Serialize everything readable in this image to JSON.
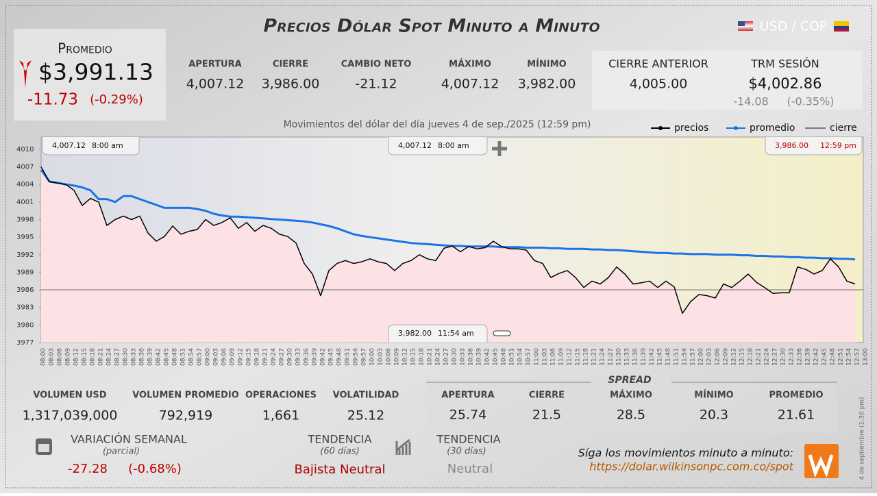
{
  "header": {
    "title": "Precios Dólar Spot Minuto a Minuto",
    "pair": "USD / COP"
  },
  "promedio": {
    "label": "Promedio",
    "value": "$3,991.13",
    "change": "-11.73",
    "pct": "(-0.29%)"
  },
  "stats": [
    {
      "label": "APERTURA",
      "value": "4,007.12"
    },
    {
      "label": "CIERRE",
      "value": "3,986.00"
    },
    {
      "label": "CAMBIO NETO",
      "value": "-21.12"
    },
    {
      "label": "MÁXIMO",
      "value": "4,007.12"
    },
    {
      "label": "MÍNIMO",
      "value": "3,982.00"
    }
  ],
  "cierre_anterior": {
    "label": "CIERRE ANTERIOR",
    "value": "4,005.00"
  },
  "trm": {
    "label": "TRM SESIÓN",
    "value": "$4,002.86",
    "change": "-14.08",
    "pct": "(-0.35%)"
  },
  "chart_data": {
    "type": "line",
    "title": "Movimientos del dólar del día jueves 4 de sep./2025 (12:59 pm)",
    "x": [
      "08:00",
      "08:03",
      "08:06",
      "08:09",
      "08:12",
      "08:15",
      "08:18",
      "08:21",
      "08:24",
      "08:27",
      "08:30",
      "08:33",
      "08:36",
      "08:39",
      "08:42",
      "08:45",
      "08:48",
      "08:51",
      "08:54",
      "08:57",
      "09:00",
      "09:03",
      "09:06",
      "09:09",
      "09:12",
      "09:15",
      "09:18",
      "09:21",
      "09:24",
      "09:27",
      "09:30",
      "09:33",
      "09:36",
      "09:39",
      "09:42",
      "09:45",
      "09:48",
      "09:51",
      "09:54",
      "09:57",
      "10:00",
      "10:03",
      "10:06",
      "10:09",
      "10:12",
      "10:15",
      "10:18",
      "10:21",
      "10:24",
      "10:27",
      "10:30",
      "10:33",
      "10:36",
      "10:39",
      "10:42",
      "10:45",
      "10:48",
      "10:51",
      "10:54",
      "10:57",
      "11:00",
      "11:03",
      "11:06",
      "11:09",
      "11:12",
      "11:15",
      "11:18",
      "11:21",
      "11:24",
      "11:27",
      "11:30",
      "11:33",
      "11:36",
      "11:39",
      "11:42",
      "11:45",
      "11:48",
      "11:51",
      "11:54",
      "11:57",
      "12:00",
      "12:03",
      "12:06",
      "12:09",
      "12:12",
      "12:15",
      "12:18",
      "12:21",
      "12:24",
      "12:27",
      "12:30",
      "12:33",
      "12:36",
      "12:39",
      "12:42",
      "12:45",
      "12:48",
      "12:51",
      "12:54",
      "12:57",
      "13:00"
    ],
    "series": [
      {
        "name": "precios",
        "color": "#000000",
        "values": [
          4007,
          4004.5,
          4004.2,
          4004,
          4003,
          4000.4,
          4001.6,
          4001,
          3997,
          3998,
          3998.6,
          3998,
          3998.6,
          3995.7,
          3994.3,
          3995.1,
          3996.9,
          3995.5,
          3996,
          3996.3,
          3998,
          3997,
          3997.5,
          3998.3,
          3996.5,
          3997.5,
          3996,
          3997,
          3996.5,
          3995.5,
          3995.1,
          3994,
          3990.5,
          3988.7,
          3985,
          3989.3,
          3990.5,
          3991,
          3990.5,
          3990.8,
          3991.3,
          3990.8,
          3990.5,
          3989.3,
          3990.5,
          3991,
          3992,
          3991.3,
          3991,
          3993.1,
          3993.5,
          3992.5,
          3993.4,
          3993,
          3993.2,
          3994.3,
          3993.4,
          3993,
          3993,
          3992.8,
          3991,
          3990.5,
          3988.1,
          3988.8,
          3989.3,
          3988.1,
          3986.4,
          3987.5,
          3987,
          3988.1,
          3989.9,
          3988.7,
          3987,
          3987.2,
          3987.5,
          3986.4,
          3987.5,
          3986.5,
          3982,
          3984,
          3985.2,
          3985,
          3984.6,
          3987,
          3986.4,
          3987.5,
          3988.7,
          3987.3,
          3986.4,
          3985.4,
          3985.5,
          3985.5,
          3989.9,
          3989.5,
          3988.7,
          3989.3,
          3991.3,
          3989.9,
          3987.5,
          3987,
          null
        ]
      },
      {
        "name": "promedio",
        "color": "#1a73e8",
        "values": [
          4006.5,
          4004.5,
          4004.3,
          4004,
          4003.8,
          4003.5,
          4003,
          4001.5,
          4001.5,
          4001,
          4002,
          4002,
          4001.5,
          4001,
          4000.5,
          4000,
          4000,
          4000,
          4000,
          3999.8,
          3999.5,
          3999,
          3998.7,
          3998.5,
          3998.5,
          3998.4,
          3998.3,
          3998.2,
          3998.1,
          3998,
          3997.9,
          3997.8,
          3997.7,
          3997.5,
          3997.2,
          3996.9,
          3996.5,
          3996,
          3995.5,
          3995.2,
          3995,
          3994.8,
          3994.6,
          3994.4,
          3994.2,
          3994,
          3993.9,
          3993.8,
          3993.7,
          3993.6,
          3993.5,
          3993.5,
          3993.4,
          3993.4,
          3993.4,
          3993.4,
          3993.3,
          3993.3,
          3993.3,
          3993.2,
          3993.2,
          3993.2,
          3993.1,
          3993.1,
          3993,
          3993,
          3993,
          3992.9,
          3992.9,
          3992.8,
          3992.8,
          3992.7,
          3992.6,
          3992.5,
          3992.4,
          3992.3,
          3992.3,
          3992.2,
          3992.2,
          3992.1,
          3992.1,
          3992.1,
          3992,
          3992,
          3992,
          3991.9,
          3991.9,
          3991.8,
          3991.8,
          3991.7,
          3991.7,
          3991.6,
          3991.6,
          3991.5,
          3991.5,
          3991.4,
          3991.4,
          3991.3,
          3991.3,
          3991.2,
          null
        ]
      }
    ],
    "close_line": {
      "name": "cierre",
      "color": "#555555",
      "value": 3986
    },
    "ylim": [
      3977,
      4012.1
    ],
    "yticks": [
      3977,
      3980,
      3983,
      3986,
      3989,
      3992,
      3995,
      3998,
      4001,
      4004,
      4007,
      4010
    ],
    "annotations": [
      {
        "value": "4,007.12",
        "time": "8:00 am"
      },
      {
        "value": "4,007.12",
        "time": "8:00 am"
      },
      {
        "value": "3,986.00",
        "time": "12:59 pm"
      },
      {
        "value": "3,982.00",
        "time": "11:54 am"
      }
    ]
  },
  "volume": [
    {
      "label": "VOLUMEN USD",
      "value": "1,317,039,000"
    },
    {
      "label": "VOLUMEN PROMEDIO",
      "value": "792,919"
    },
    {
      "label": "OPERACIONES",
      "value": "1,661"
    },
    {
      "label": "VOLATILIDAD",
      "value": "25.12"
    }
  ],
  "spread": {
    "title": "SPREAD",
    "items": [
      {
        "label": "APERTURA",
        "value": "25.74"
      },
      {
        "label": "CIERRE",
        "value": "21.5"
      },
      {
        "label": "MÁXIMO",
        "value": "28.5"
      },
      {
        "label": "MÍNIMO",
        "value": "20.3"
      },
      {
        "label": "PROMEDIO",
        "value": "21.61"
      }
    ]
  },
  "weekly": {
    "label": "VARIACIÓN SEMANAL",
    "note": "(parcial)",
    "change": "-27.28",
    "pct": "(-0.68%)"
  },
  "trend60": {
    "label": "TENDENCIA",
    "note": "(60 días)",
    "value": "Bajista Neutral"
  },
  "trend30": {
    "label": "TENDENCIA",
    "note": "(30 días)",
    "value": "Neutral"
  },
  "footer": {
    "text": "Síga los movimientos minuto a minuto:",
    "url": "https://dolar.wilkinsonpc.com.co/spot",
    "stamp": "4 de septiembre (1:30 pm)"
  }
}
